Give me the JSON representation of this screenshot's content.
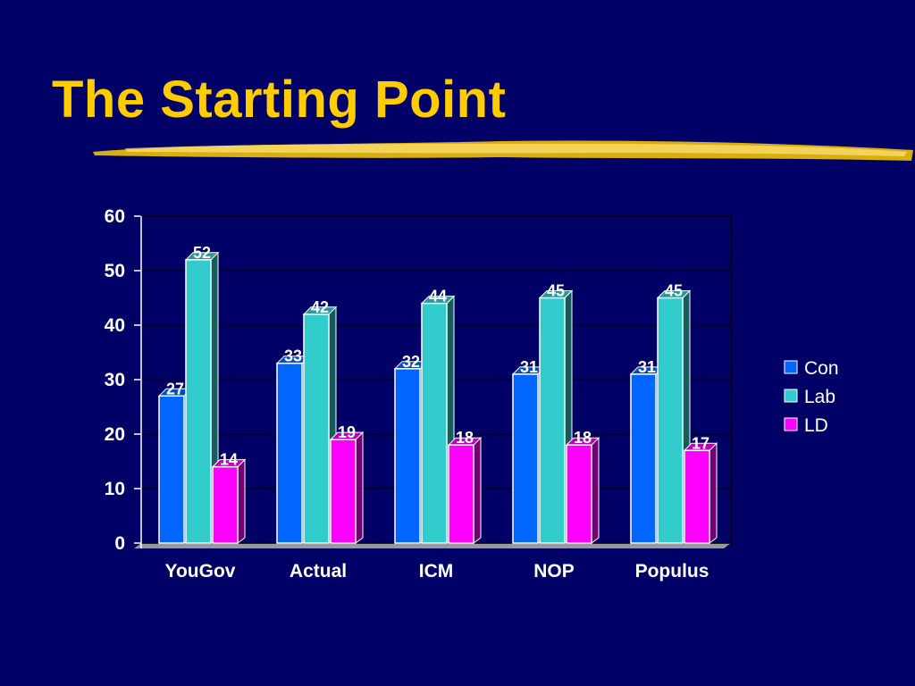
{
  "slide": {
    "title": "The Starting Point"
  },
  "colors": {
    "background": "#000066",
    "title": "#FFCC00",
    "axis": "#FFFFFF"
  },
  "chart_data": {
    "type": "bar",
    "categories": [
      "YouGov",
      "Actual",
      "ICM",
      "NOP",
      "Populus"
    ],
    "series": [
      {
        "name": "Con",
        "values": [
          27,
          33,
          32,
          31,
          31
        ],
        "color": "#0066FF"
      },
      {
        "name": "Lab",
        "values": [
          52,
          42,
          44,
          45,
          45
        ],
        "color": "#33CCCC"
      },
      {
        "name": "LD",
        "values": [
          14,
          19,
          18,
          18,
          17
        ],
        "color": "#FF00FF"
      }
    ],
    "title": "",
    "xlabel": "",
    "ylabel": "",
    "ylim": [
      0,
      60
    ],
    "yticks": [
      0,
      10,
      20,
      30,
      40,
      50,
      60
    ],
    "grid": true,
    "legend": "right",
    "data_labels": true,
    "style": "3d"
  }
}
